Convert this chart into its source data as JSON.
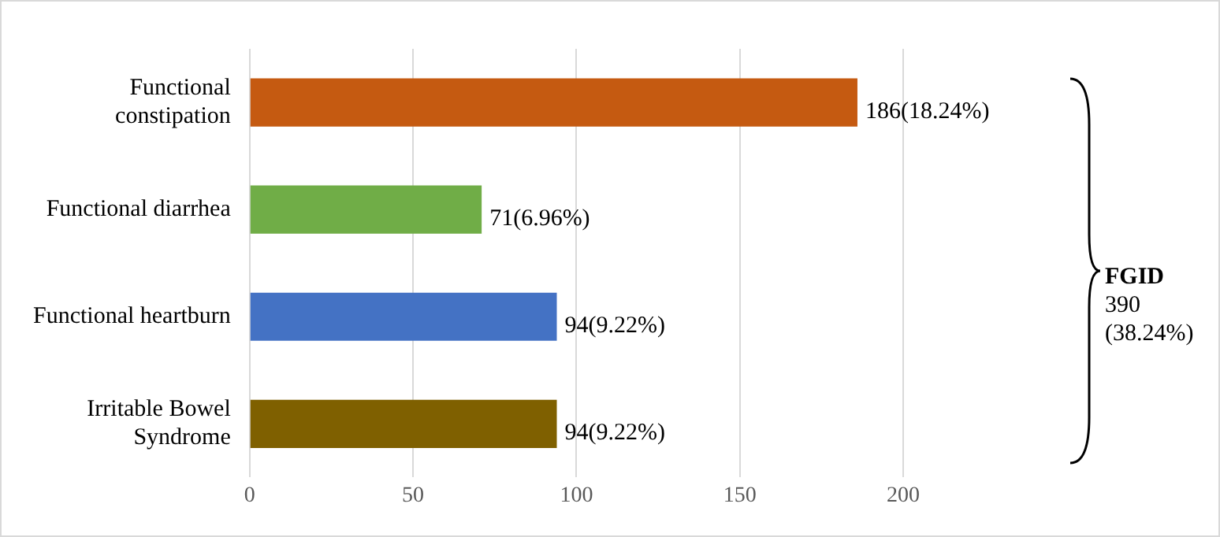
{
  "chart_data": {
    "type": "bar",
    "orientation": "horizontal",
    "categories": [
      "Functional constipation",
      "Functional diarrhea",
      "Functional heartburn",
      "Irritable Bowel Syndrome"
    ],
    "values": [
      186,
      71,
      94,
      94
    ],
    "colors": [
      "#c55a11",
      "#70ad47",
      "#4472c4",
      "#7f6000"
    ],
    "value_labels": [
      "186(18.24%)",
      "71(6.96%)",
      "94(9.22%)",
      "94(9.22%)"
    ],
    "xlim": [
      0,
      200
    ],
    "xticks": [
      0,
      50,
      100,
      150,
      200
    ],
    "grid": "x",
    "legend": false,
    "annotations": [
      "FGID",
      "390 (38.24%)"
    ]
  }
}
